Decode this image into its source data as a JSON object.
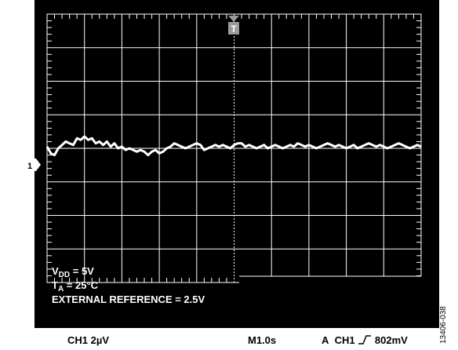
{
  "chart_data": {
    "type": "line",
    "grid": true,
    "divisions": {
      "x": 10,
      "y": 8
    },
    "x_range": [
      0,
      10
    ],
    "y_range": [
      -4,
      4
    ],
    "series": [
      {
        "color": "#ffffff",
        "x": [
          0,
          0.1,
          0.2,
          0.3,
          0.4,
          0.5,
          0.6,
          0.7,
          0.8,
          0.9,
          1.0,
          1.1,
          1.2,
          1.3,
          1.4,
          1.5,
          1.6,
          1.7,
          1.8,
          1.9,
          2.0,
          2.1,
          2.2,
          2.3,
          2.4,
          2.5,
          2.6,
          2.7,
          2.8,
          2.9,
          3.0,
          3.1,
          3.2,
          3.3,
          3.4,
          3.5,
          3.6,
          3.7,
          3.8,
          3.9,
          4.0,
          4.1,
          4.2,
          4.3,
          4.4,
          4.5,
          4.6,
          4.7,
          4.8,
          4.9,
          5.0,
          5.1,
          5.2,
          5.3,
          5.4,
          5.5,
          5.6,
          5.7,
          5.8,
          5.9,
          6.0,
          6.1,
          6.2,
          6.3,
          6.4,
          6.5,
          6.6,
          6.7,
          6.8,
          6.9,
          7.0,
          7.1,
          7.2,
          7.3,
          7.4,
          7.5,
          7.6,
          7.7,
          7.8,
          7.9,
          8.0,
          8.1,
          8.2,
          8.3,
          8.4,
          8.5,
          8.6,
          8.7,
          8.8,
          8.9,
          9.0,
          9.1,
          9.2,
          9.3,
          9.4,
          9.5,
          9.6,
          9.7,
          9.8,
          9.9,
          10.0
        ],
        "y": [
          0.05,
          -0.15,
          -0.2,
          0.0,
          0.1,
          0.2,
          0.15,
          0.1,
          0.3,
          0.25,
          0.35,
          0.25,
          0.3,
          0.15,
          0.2,
          0.1,
          0.2,
          0.05,
          0.15,
          0.0,
          0.05,
          -0.05,
          0.0,
          -0.05,
          -0.1,
          -0.05,
          -0.1,
          -0.2,
          -0.1,
          -0.05,
          -0.15,
          -0.1,
          0.0,
          0.05,
          0.15,
          0.1,
          0.05,
          0.0,
          0.05,
          0.1,
          0.15,
          0.1,
          -0.05,
          0.0,
          0.05,
          0.1,
          0.05,
          0.1,
          0.05,
          0.0,
          0.1,
          0.15,
          0.15,
          0.05,
          0.1,
          0.05,
          0.0,
          0.05,
          0.1,
          0.0,
          0.05,
          0.1,
          0.05,
          0.0,
          0.05,
          0.1,
          0.05,
          0.15,
          0.1,
          0.05,
          0.1,
          0.05,
          0.0,
          0.05,
          0.1,
          0.15,
          0.1,
          0.05,
          0.1,
          0.05,
          0.0,
          0.05,
          0.1,
          0.0,
          0.05,
          0.1,
          0.15,
          0.1,
          0.05,
          0.1,
          0.05,
          0.0,
          0.05,
          0.1,
          0.15,
          0.1,
          0.05,
          0.0,
          0.05,
          0.1,
          0.05
        ]
      }
    ],
    "channel_marker": "1",
    "trigger_marker": "T",
    "annotations": [
      {
        "main": "V",
        "sub": "DD",
        "rest": " = 5V"
      },
      {
        "main": "T",
        "sub": "A",
        "rest": " = 25°C"
      },
      {
        "main": "EXTERNAL REFERENCE = 2.5V",
        "sub": "",
        "rest": ""
      }
    ],
    "footer": {
      "channel_scale": "CH1 2µV",
      "time_scale": "M1.0s",
      "trigger_a": "A",
      "trigger_ch": "CH1",
      "trigger_level": "802mV"
    },
    "figure_id": "13406-038"
  }
}
